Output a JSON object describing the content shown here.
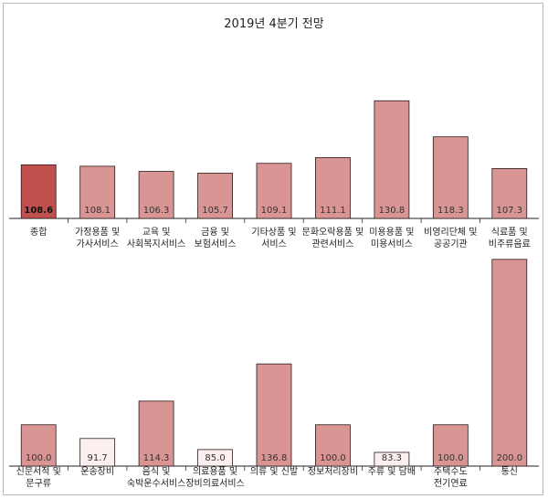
{
  "title": "2019년 4분기 전망",
  "colors": {
    "highlight": "#c0504d",
    "normal": "#d99594",
    "pale": "#fbf0ef",
    "outline": "#2a1a1a"
  },
  "chart_data": [
    {
      "type": "bar",
      "categories": [
        "종합",
        "가정용품 및\n가사서비스",
        "교육 및\n사회복지서비스",
        "금융 및\n보험서비스",
        "기타상품 및\n서비스",
        "문화오락용품 및\n관련서비스",
        "미용용품 및\n미용서비스",
        "비영리단체 및\n공공기관",
        "식료품 및\n비주류음료"
      ],
      "values": [
        108.6,
        108.1,
        106.3,
        105.7,
        109.1,
        111.1,
        130.8,
        118.3,
        107.3
      ],
      "value_labels": [
        "108.6",
        "108.1",
        "106.3",
        "105.7",
        "109.1",
        "111.1",
        "130.8",
        "118.3",
        "107.3"
      ],
      "styles": [
        "highlight",
        "normal",
        "normal",
        "normal",
        "normal",
        "normal",
        "normal",
        "normal",
        "normal"
      ],
      "ylim": [
        90,
        135
      ],
      "grid": false
    },
    {
      "type": "bar",
      "categories": [
        "신문서적 및\n문구류",
        "운송장비",
        "음식 및\n숙박운수서비스",
        "의료용품 및\n장비의료서비스",
        "의류 및 신발",
        "정보처리장비",
        "주류 및 담배",
        "주택수도\n전기연료",
        "통신"
      ],
      "values": [
        100.0,
        91.7,
        114.3,
        85.0,
        136.8,
        100.0,
        83.3,
        100.0,
        200.0
      ],
      "value_labels": [
        "100.0",
        "91.7",
        "114.3",
        "85.0",
        "136.8",
        "100.0",
        "83.3",
        "100.0",
        "200.0"
      ],
      "styles": [
        "normal",
        "pale",
        "normal",
        "pale",
        "normal",
        "normal",
        "pale",
        "normal",
        "normal"
      ],
      "ylim": [
        75,
        201
      ],
      "grid": false
    }
  ]
}
